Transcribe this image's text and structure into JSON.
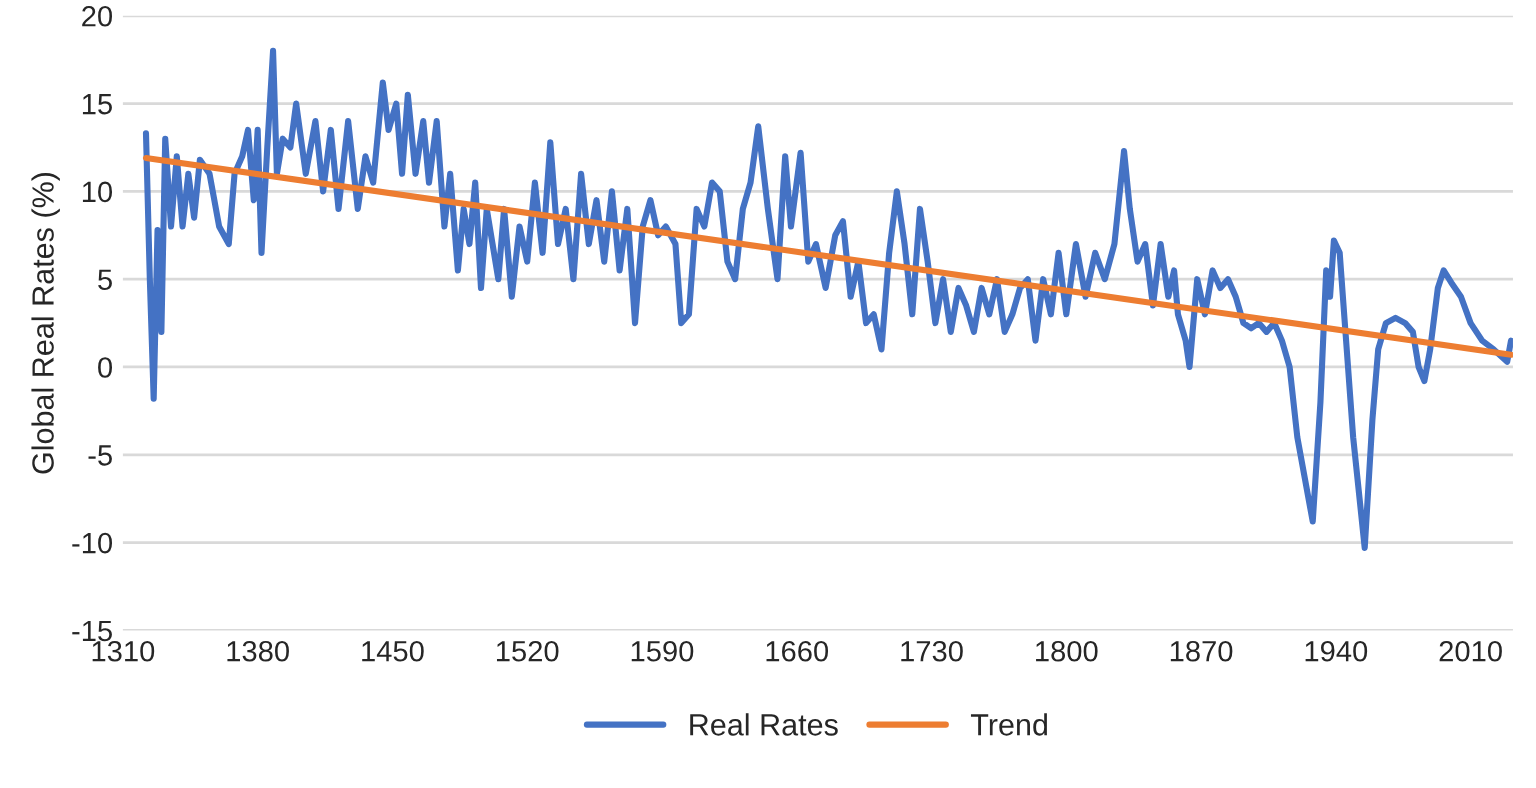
{
  "chart_data": {
    "type": "line",
    "ylabel": "Global Real Rates (%)",
    "xlim": [
      1310,
      2032
    ],
    "xticks": [
      1310,
      1380,
      1450,
      1520,
      1590,
      1660,
      1730,
      1800,
      1870,
      1940,
      2010
    ],
    "ylim": [
      -15,
      20
    ],
    "yticks": [
      -15,
      -10,
      -5,
      0,
      5,
      10,
      15,
      20
    ],
    "grid": "y",
    "legend": "bottom",
    "series": [
      {
        "name": "Real Rates",
        "color": "#4472c4",
        "x": [
          1322,
          1324,
          1326,
          1328,
          1330,
          1332,
          1335,
          1338,
          1341,
          1344,
          1347,
          1350,
          1355,
          1360,
          1365,
          1368,
          1372,
          1375,
          1378,
          1380,
          1382,
          1385,
          1388,
          1390,
          1393,
          1397,
          1400,
          1405,
          1410,
          1414,
          1418,
          1422,
          1427,
          1432,
          1436,
          1440,
          1445,
          1448,
          1452,
          1455,
          1458,
          1462,
          1466,
          1469,
          1473,
          1477,
          1480,
          1484,
          1487,
          1490,
          1493,
          1496,
          1499,
          1502,
          1505,
          1508,
          1512,
          1516,
          1520,
          1524,
          1528,
          1532,
          1536,
          1540,
          1544,
          1548,
          1552,
          1556,
          1560,
          1564,
          1568,
          1572,
          1576,
          1580,
          1584,
          1588,
          1592,
          1597,
          1600,
          1604,
          1608,
          1612,
          1616,
          1620,
          1624,
          1628,
          1632,
          1636,
          1640,
          1645,
          1650,
          1654,
          1657,
          1662,
          1666,
          1670,
          1675,
          1680,
          1684,
          1688,
          1692,
          1696,
          1700,
          1704,
          1708,
          1712,
          1716,
          1720,
          1724,
          1728,
          1732,
          1736,
          1740,
          1744,
          1748,
          1752,
          1756,
          1760,
          1764,
          1768,
          1772,
          1776,
          1780,
          1784,
          1788,
          1792,
          1796,
          1800,
          1805,
          1810,
          1815,
          1820,
          1825,
          1830,
          1833,
          1837,
          1841,
          1845,
          1849,
          1853,
          1856,
          1858,
          1862,
          1864,
          1868,
          1872,
          1876,
          1880,
          1884,
          1888,
          1892,
          1896,
          1900,
          1904,
          1908,
          1912,
          1916,
          1920,
          1928,
          1932,
          1935,
          1937,
          1939,
          1942,
          1945,
          1949,
          1955,
          1959,
          1962,
          1966,
          1971,
          1976,
          1980,
          1983,
          1986,
          1989,
          1993,
          1996,
          2000,
          2005,
          2010,
          2016,
          2022,
          2027,
          2029,
          2031
        ],
        "values": [
          13.3,
          5,
          -1.8,
          7.8,
          2,
          13,
          8,
          12,
          8,
          11,
          8.5,
          11.8,
          11,
          8,
          7,
          11,
          12,
          13.5,
          9.5,
          13.5,
          6.5,
          12.5,
          18,
          11,
          13,
          12.5,
          15,
          11,
          14,
          10,
          13.5,
          9,
          14,
          9,
          12,
          10.5,
          16.2,
          13.5,
          15,
          11,
          15.5,
          11,
          14,
          10.5,
          14,
          8,
          11,
          5.5,
          9,
          7,
          10.5,
          4.5,
          9,
          7,
          5,
          9,
          4,
          8,
          6,
          10.5,
          6.5,
          12.8,
          7,
          9,
          5,
          11,
          7,
          9.5,
          6,
          10,
          5.5,
          9,
          2.5,
          8,
          9.5,
          7.5,
          8,
          7,
          2.5,
          3,
          9,
          8,
          10.5,
          10,
          6,
          5,
          9,
          10.5,
          13.7,
          9,
          5,
          12,
          8,
          12.2,
          6,
          7,
          4.5,
          7.5,
          8.3,
          4,
          6,
          2.5,
          3,
          1,
          6.5,
          10,
          7,
          3,
          9,
          6,
          2.5,
          5,
          2,
          4.5,
          3.5,
          2,
          4.5,
          3,
          5,
          2,
          3,
          4.5,
          5,
          1.5,
          5,
          3,
          6.5,
          3,
          7,
          4,
          6.5,
          5,
          7,
          12.3,
          9,
          6,
          7,
          3.5,
          7,
          4,
          5.5,
          3,
          1.5,
          0,
          5,
          3,
          5.5,
          4.5,
          5,
          4,
          2.5,
          2.2,
          2.5,
          2,
          2.5,
          1.5,
          0,
          -4,
          -8.8,
          -2,
          5.5,
          4,
          7.2,
          6.5,
          2,
          -4,
          -10.3,
          -3,
          1,
          2.5,
          2.8,
          2.5,
          2,
          0,
          -0.8,
          1,
          4.5,
          5.5,
          4.8,
          4,
          2.5,
          1.5,
          1,
          0.5,
          0.3,
          1.5
        ]
      },
      {
        "name": "Trend",
        "color": "#ed7d31",
        "x": [
          1322,
          2031
        ],
        "values": [
          11.9,
          0.7
        ]
      }
    ]
  }
}
